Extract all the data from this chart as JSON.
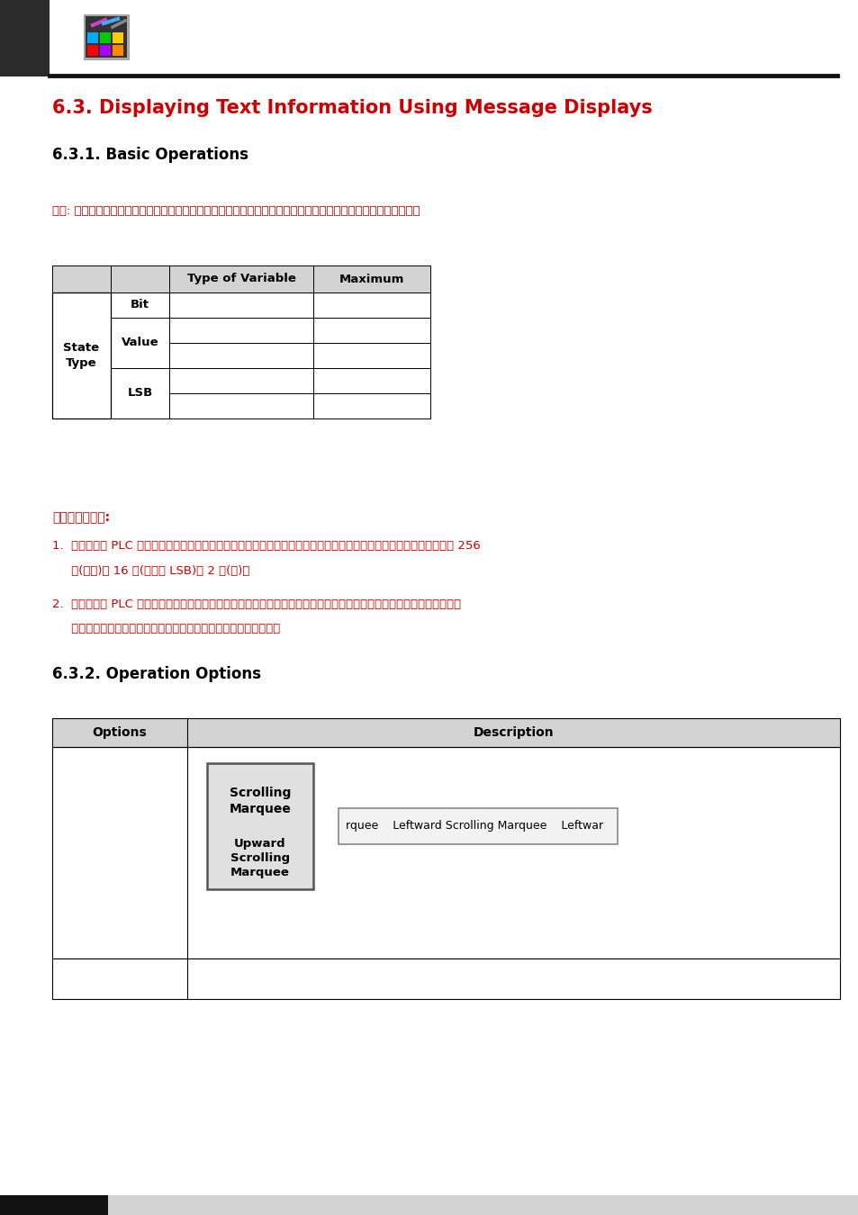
{
  "title": "6.3. Displaying Text Information Using Message Displays",
  "subtitle": "6.3.1. Basic Operations",
  "hint_text": "提示: 訊息顯示和指示燈的主要差別處是：訊息顯示的內容只有文字，不能用圖檔，而指示燈內容可用文字和圖檔。",
  "section2": "6.3.2. Operation Options",
  "msg_line1": "訊息顯示有二種:",
  "msg_item1a": "1.  觸控屏讀取 PLC 之接點狀態或暫存器値，自動依據各對應狀態規劃物件內容直接顯示在觸控屏幕上。狀態數最多可達 256",
  "msg_item1b": "     個(數値)或 16 個(最低位 LSB)或 2 個(位)。",
  "msg_item2a": "2.  觸控屏讀取 PLC 之接點狀態或暫存器値，自動依據各對應狀態規劃物件內容逐一顯示在觸控屏幕上，文字顯示效果為文",
  "msg_item2b": "     字依序由右至左移動顯示，設計時可控制每次移動的字數與速度。",
  "table2_header": [
    "Options",
    "Description"
  ],
  "scrolling_label1": "Scrolling\nMarquee",
  "scrolling_label2": "Upward\nScrolling\nMarquee",
  "marquee_text": "rquee    Leftward Scrolling Marquee    Leftwar",
  "bg_color": "#ffffff",
  "title_color": "#cc0000",
  "hint_color": "#cc0000",
  "body_text_color": "#cc0000",
  "header_text_color": "#000000",
  "table_header_bg": "#d3d3d3",
  "table_border_color": "#000000",
  "section_header_color": "#000000",
  "left_bar_color": "#2b2b2b",
  "bottom_bar_color": "#111111",
  "bottom_bar_gray": "#d3d3d3"
}
